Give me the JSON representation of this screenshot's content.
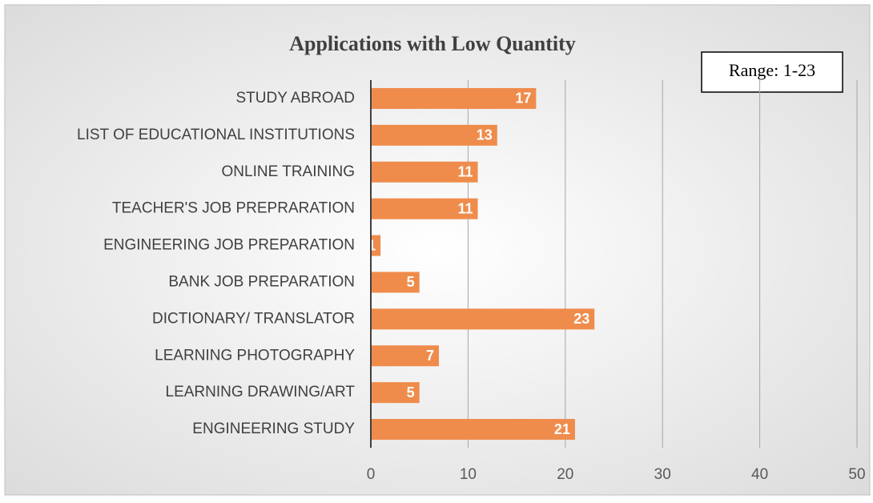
{
  "chart_data": {
    "type": "bar",
    "orientation": "horizontal",
    "title": "Applications with Low Quantity",
    "annotation": "Range: 1-23",
    "categories": [
      "STUDY ABROAD",
      "LIST OF EDUCATIONAL INSTITUTIONS",
      "ONLINE TRAINING",
      "TEACHER'S JOB PREPRARATION",
      "ENGINEERING JOB PREPARATION",
      "BANK JOB PREPARATION",
      "DICTIONARY/ TRANSLATOR",
      "LEARNING PHOTOGRAPHY",
      "LEARNING DRAWING/ART",
      "ENGINEERING STUDY"
    ],
    "values": [
      17,
      13,
      11,
      11,
      1,
      5,
      23,
      7,
      5,
      21
    ],
    "color": "#ef8c4c",
    "xlim": [
      0,
      50
    ],
    "xticks": [
      0,
      10,
      20,
      30,
      40,
      50
    ],
    "grid": true
  }
}
